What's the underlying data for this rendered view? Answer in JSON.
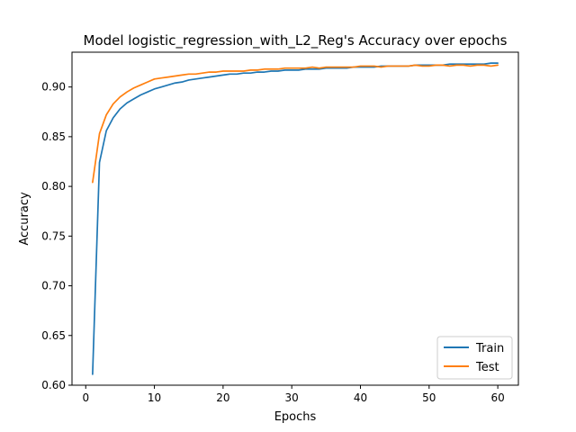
{
  "chart_data": {
    "type": "line",
    "title": "Model logistic_regression_with_L2_Reg's Accuracy over epochs",
    "xlabel": "Epochs",
    "ylabel": "Accuracy",
    "xlim": [
      -2,
      63
    ],
    "ylim": [
      0.6,
      0.935
    ],
    "xticks": [
      0,
      10,
      20,
      30,
      40,
      50,
      60
    ],
    "yticks": [
      0.6,
      0.65,
      0.7,
      0.75,
      0.8,
      0.85,
      0.9
    ],
    "ytick_labels": [
      "0.60",
      "0.65",
      "0.70",
      "0.75",
      "0.80",
      "0.85",
      "0.90"
    ],
    "grid": false,
    "legend_position": "lower-right",
    "x": [
      1,
      2,
      3,
      4,
      5,
      6,
      7,
      8,
      9,
      10,
      11,
      12,
      13,
      14,
      15,
      16,
      17,
      18,
      19,
      20,
      21,
      22,
      23,
      24,
      25,
      26,
      27,
      28,
      29,
      30,
      31,
      32,
      33,
      34,
      35,
      36,
      37,
      38,
      39,
      40,
      41,
      42,
      43,
      44,
      45,
      46,
      47,
      48,
      49,
      50,
      51,
      52,
      53,
      54,
      55,
      56,
      57,
      58,
      59,
      60
    ],
    "series": [
      {
        "name": "Train",
        "color": "#1f77b4",
        "values": [
          0.611,
          0.824,
          0.856,
          0.869,
          0.878,
          0.884,
          0.888,
          0.892,
          0.895,
          0.898,
          0.9,
          0.902,
          0.904,
          0.905,
          0.907,
          0.908,
          0.909,
          0.91,
          0.911,
          0.912,
          0.913,
          0.913,
          0.914,
          0.914,
          0.915,
          0.915,
          0.916,
          0.916,
          0.917,
          0.917,
          0.917,
          0.918,
          0.918,
          0.918,
          0.919,
          0.919,
          0.919,
          0.919,
          0.92,
          0.92,
          0.92,
          0.92,
          0.921,
          0.921,
          0.921,
          0.921,
          0.921,
          0.922,
          0.922,
          0.922,
          0.922,
          0.922,
          0.923,
          0.923,
          0.923,
          0.923,
          0.923,
          0.923,
          0.924,
          0.924
        ]
      },
      {
        "name": "Test",
        "color": "#ff7f0e",
        "values": [
          0.804,
          0.853,
          0.872,
          0.883,
          0.89,
          0.895,
          0.899,
          0.902,
          0.905,
          0.908,
          0.909,
          0.91,
          0.911,
          0.912,
          0.913,
          0.913,
          0.914,
          0.915,
          0.915,
          0.916,
          0.916,
          0.916,
          0.916,
          0.917,
          0.917,
          0.918,
          0.918,
          0.918,
          0.919,
          0.919,
          0.919,
          0.919,
          0.92,
          0.919,
          0.92,
          0.92,
          0.92,
          0.92,
          0.92,
          0.921,
          0.921,
          0.921,
          0.92,
          0.921,
          0.921,
          0.921,
          0.921,
          0.922,
          0.921,
          0.921,
          0.922,
          0.922,
          0.921,
          0.922,
          0.922,
          0.921,
          0.922,
          0.922,
          0.921,
          0.922
        ]
      }
    ]
  }
}
